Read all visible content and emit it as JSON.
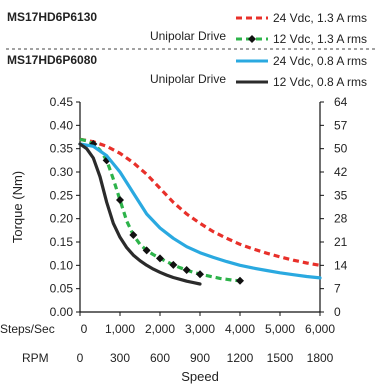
{
  "chart_data": {
    "type": "line",
    "xlabel": "Speed",
    "ylabel": "Torque (Nm)",
    "ylim": [
      0,
      0.45
    ],
    "xlim_rpm": [
      0,
      1800
    ],
    "grid": false,
    "y_ticks": [
      "0.00",
      "0.05",
      "0.10",
      "0.15",
      "0.20",
      "0.25",
      "0.30",
      "0.35",
      "0.40",
      "0.45"
    ],
    "y_ticks_right": [
      "0",
      "7",
      "14",
      "21",
      "28",
      "35",
      "42",
      "50",
      "57",
      "64"
    ],
    "x_axis_rows": [
      {
        "label": "Steps/Sec",
        "ticks": [
          "0",
          "1,000",
          "2,000",
          "3,000",
          "4,000",
          "5,000",
          "6,000"
        ]
      },
      {
        "label": "RPM",
        "ticks": [
          "0",
          "300",
          "600",
          "900",
          "1200",
          "1500",
          "1800"
        ]
      }
    ],
    "legend_groups": [
      {
        "model": "MS17HD6P6130",
        "drive": "Unipolar Drive"
      },
      {
        "model": "MS17HD6P6080",
        "drive": "Unipolar Drive"
      }
    ],
    "series": [
      {
        "name": "24 Vdc, 1.3 A rms",
        "color": "#e8302a",
        "style": "dashed",
        "x": [
          0,
          100,
          200,
          300,
          400,
          500,
          600,
          700,
          800,
          900,
          1000,
          1100,
          1200,
          1300,
          1400,
          1500,
          1600,
          1700,
          1800
        ],
        "y": [
          0.37,
          0.365,
          0.355,
          0.34,
          0.32,
          0.295,
          0.265,
          0.235,
          0.21,
          0.19,
          0.172,
          0.158,
          0.145,
          0.135,
          0.126,
          0.118,
          0.111,
          0.105,
          0.1
        ]
      },
      {
        "name": "12 Vdc, 1.3 A rms",
        "color": "#2db34a",
        "style": "dashed-markers",
        "x": [
          0,
          50,
          100,
          150,
          200,
          250,
          300,
          350,
          400,
          450,
          500,
          550,
          600,
          650,
          700,
          750,
          800,
          850,
          900,
          950,
          1000,
          1050,
          1100,
          1150,
          1200
        ],
        "y": [
          0.37,
          0.367,
          0.36,
          0.347,
          0.325,
          0.285,
          0.24,
          0.195,
          0.165,
          0.145,
          0.132,
          0.123,
          0.115,
          0.108,
          0.101,
          0.095,
          0.09,
          0.085,
          0.081,
          0.078,
          0.075,
          0.072,
          0.07,
          0.068,
          0.067
        ],
        "markers_x": [
          100,
          200,
          300,
          400,
          500,
          600,
          700,
          800,
          900,
          1200
        ],
        "markers_y": [
          0.36,
          0.325,
          0.24,
          0.165,
          0.132,
          0.115,
          0.101,
          0.09,
          0.081,
          0.067
        ]
      },
      {
        "name": "24 Vdc, 0.8 A rms",
        "color": "#2aa9e0",
        "style": "solid",
        "x": [
          0,
          100,
          200,
          300,
          400,
          500,
          600,
          700,
          800,
          900,
          1000,
          1100,
          1200,
          1300,
          1400,
          1500,
          1600,
          1700,
          1800
        ],
        "y": [
          0.36,
          0.355,
          0.335,
          0.3,
          0.255,
          0.21,
          0.18,
          0.158,
          0.14,
          0.127,
          0.117,
          0.108,
          0.1,
          0.094,
          0.089,
          0.084,
          0.08,
          0.076,
          0.073
        ]
      },
      {
        "name": "12 Vdc, 0.8 A rms",
        "color": "#2b2b2b",
        "style": "solid",
        "x": [
          0,
          50,
          100,
          150,
          200,
          250,
          300,
          350,
          400,
          450,
          500,
          550,
          600,
          650,
          700,
          750,
          800,
          850,
          900
        ],
        "y": [
          0.36,
          0.35,
          0.33,
          0.29,
          0.235,
          0.19,
          0.16,
          0.138,
          0.122,
          0.11,
          0.1,
          0.092,
          0.085,
          0.079,
          0.074,
          0.07,
          0.066,
          0.063,
          0.06
        ]
      }
    ]
  }
}
